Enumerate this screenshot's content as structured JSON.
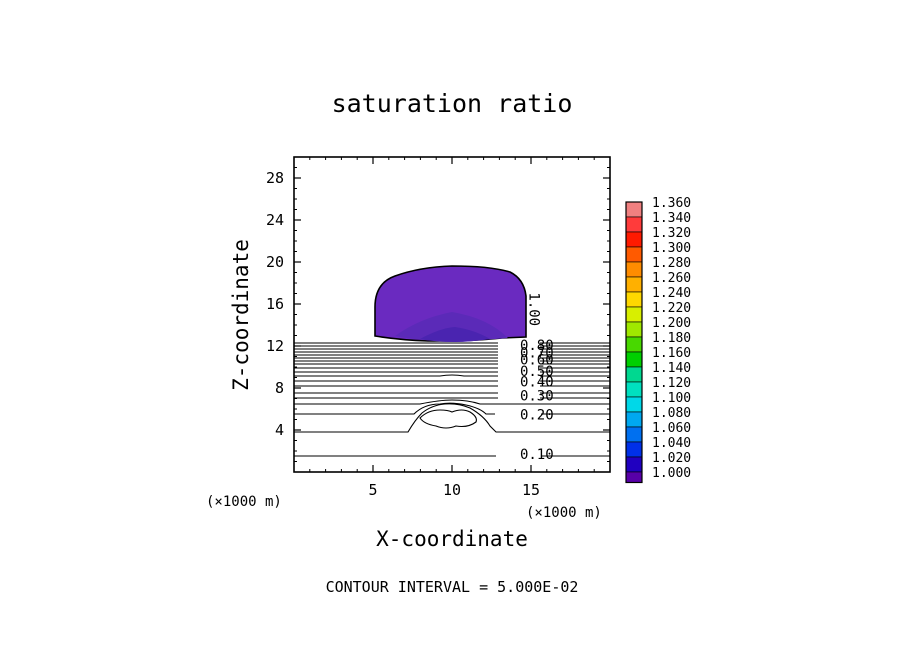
{
  "chart_data": {
    "type": "contour",
    "title": "saturation ratio",
    "xlabel": "X-coordinate",
    "ylabel": "Z-coordinate",
    "x_unit_label_left": "(×1000 m)",
    "x_unit_label_right": "(×1000 m)",
    "xlim": [
      0,
      20
    ],
    "ylim": [
      0,
      30
    ],
    "x_ticks": [
      5,
      10,
      15
    ],
    "y_ticks": [
      4,
      8,
      12,
      16,
      20,
      24,
      28
    ],
    "footer": "CONTOUR INTERVAL = 5.000E-02",
    "contour_labels": [
      {
        "text": "1.00",
        "x": 14.4,
        "z": 15.5,
        "rotation": 90
      },
      {
        "text": "0.80",
        "x": 14.3,
        "z": 12.1
      },
      {
        "text": "0.70",
        "x": 14.3,
        "z": 11.4
      },
      {
        "text": "0.60",
        "x": 14.3,
        "z": 10.7
      },
      {
        "text": "0.50",
        "x": 14.3,
        "z": 9.6
      },
      {
        "text": "0.40",
        "x": 14.3,
        "z": 8.6
      },
      {
        "text": "0.30",
        "x": 14.3,
        "z": 7.3
      },
      {
        "text": "0.20",
        "x": 14.3,
        "z": 5.5
      },
      {
        "text": "0.10",
        "x": 14.3,
        "z": 1.7
      }
    ],
    "colorbar": {
      "levels": [
        "1.360",
        "1.340",
        "1.320",
        "1.300",
        "1.280",
        "1.260",
        "1.240",
        "1.220",
        "1.200",
        "1.180",
        "1.160",
        "1.140",
        "1.120",
        "1.100",
        "1.080",
        "1.060",
        "1.040",
        "1.020",
        "1.000"
      ],
      "colors": [
        "#f08080",
        "#ff3b3b",
        "#ff1a00",
        "#ff5a00",
        "#ff8c00",
        "#ffb000",
        "#ffd800",
        "#d8ef00",
        "#a0e800",
        "#48d800",
        "#00d000",
        "#00d890",
        "#00e0c0",
        "#00d8e8",
        "#00a8f0",
        "#0070f0",
        "#0030e8",
        "#2000c0",
        "#5800a8"
      ]
    }
  }
}
